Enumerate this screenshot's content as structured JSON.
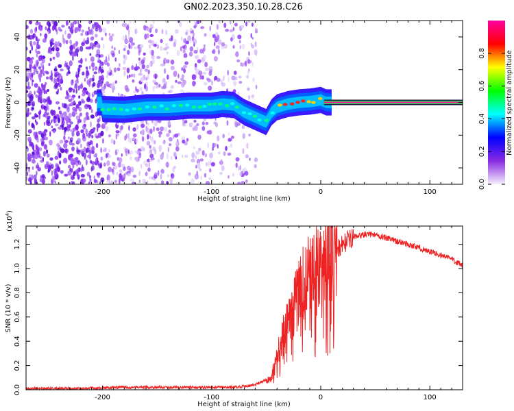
{
  "title": "GN02.2023.350.10.28.C26",
  "chart_data": [
    {
      "type": "heatmap",
      "xlabel": "Height of straight line (km)",
      "ylabel": "Frequency (Hz)",
      "xlim": [
        -270,
        130
      ],
      "ylim": [
        -50,
        50
      ],
      "xticks": [
        -200,
        -100,
        0,
        100
      ],
      "xtick_labels": [
        "-200",
        "-100",
        "0",
        "100"
      ],
      "yticks": [
        -40,
        -20,
        0,
        20,
        40
      ],
      "ytick_labels": [
        "-40",
        "-20",
        "0",
        "20",
        "40"
      ],
      "colorbar": {
        "label": "Normalized spectral amplitude",
        "range": [
          0,
          1
        ],
        "ticks": [
          0.0,
          0.2,
          0.4,
          0.6,
          0.8
        ],
        "tick_labels": [
          "0.0",
          "0.2",
          "0.4",
          "0.6",
          "0.8"
        ],
        "colors": [
          "#f4eefc",
          "#8a2be2",
          "#0000ff",
          "#00ffff",
          "#00ff00",
          "#ffff00",
          "#ff0000",
          "#ff00a0"
        ]
      },
      "ridge": {
        "x": [
          -200,
          -180,
          -160,
          -140,
          -120,
          -100,
          -90,
          -80,
          -70,
          -60,
          -50,
          -45,
          -40,
          -30,
          -20,
          -10,
          0,
          5,
          10,
          130
        ],
        "y": [
          -4,
          -4.5,
          -3,
          -3,
          -2,
          -2,
          -1,
          -1.5,
          -6,
          -9,
          -12,
          -6,
          -3,
          -1,
          0,
          0.5,
          1.5,
          0,
          0,
          0
        ]
      },
      "grid": false
    },
    {
      "type": "line",
      "xlabel": "Height of straight line (km)",
      "ylabel": "SNR (10 * v/v)",
      "y_multiplier_label": "(x10",
      "y_multiplier_exp": "4",
      "y_multiplier_close": ")",
      "xlim": [
        -270,
        130
      ],
      "ylim": [
        0,
        1.35
      ],
      "xticks": [
        -200,
        -100,
        0,
        100
      ],
      "xtick_labels": [
        "-200",
        "-100",
        "0",
        "100"
      ],
      "yticks": [
        0.0,
        0.2,
        0.4,
        0.6,
        0.8,
        1.0,
        1.2
      ],
      "ytick_labels": [
        "0.0",
        "0.2",
        "0.4",
        "0.6",
        "0.8",
        "1.0",
        "1.2"
      ],
      "series": [
        {
          "color": "#ee2222",
          "x": [
            -270,
            -220,
            -180,
            -140,
            -110,
            -80,
            -60,
            -45,
            -40,
            -35,
            -30,
            -25,
            -20,
            -15,
            -10,
            -5,
            0,
            5,
            10,
            15,
            20,
            30,
            40,
            50,
            60,
            80,
            100,
            120,
            130
          ],
          "y": [
            0.01,
            0.01,
            0.02,
            0.02,
            0.02,
            0.02,
            0.04,
            0.1,
            0.3,
            0.45,
            0.55,
            0.68,
            0.8,
            0.9,
            0.95,
            1.0,
            1.05,
            1.1,
            1.12,
            1.15,
            1.2,
            1.26,
            1.28,
            1.28,
            1.25,
            1.2,
            1.14,
            1.08,
            1.02
          ]
        }
      ],
      "grid": false
    }
  ]
}
